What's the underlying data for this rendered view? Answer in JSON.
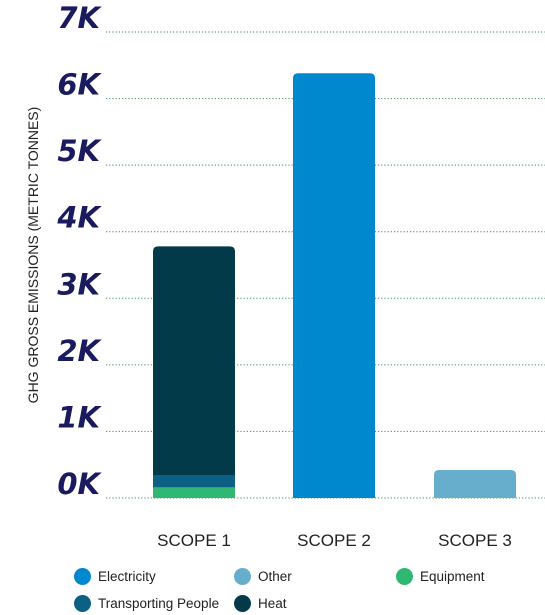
{
  "chart_data": {
    "type": "bar",
    "stacked": true,
    "title": "",
    "xlabel": "",
    "ylabel": "GHG GROSS EMISSIONS (METRIC TONNES)",
    "ylim": [
      0,
      7000
    ],
    "y_ticks": [
      0,
      1000,
      2000,
      3000,
      4000,
      5000,
      6000,
      7000
    ],
    "y_tick_labels": [
      "0K",
      "1K",
      "2K",
      "3K",
      "4K",
      "5K",
      "6K",
      "7K"
    ],
    "categories": [
      "SCOPE 1",
      "SCOPE 2",
      "SCOPE 3"
    ],
    "grid": true,
    "legend_position": "bottom",
    "series": [
      {
        "name": "Equipment",
        "color": "#2fb774",
        "values": [
          160,
          0,
          0
        ]
      },
      {
        "name": "Transporting People",
        "color": "#0e5f84",
        "values": [
          175,
          0,
          0
        ]
      },
      {
        "name": "Heat",
        "color": "#023a4a",
        "values": [
          3445,
          0,
          0
        ]
      },
      {
        "name": "Electricity",
        "color": "#0088cf",
        "values": [
          0,
          6380,
          0
        ]
      },
      {
        "name": "Other",
        "color": "#66aecb",
        "values": [
          0,
          0,
          420
        ]
      }
    ]
  },
  "legend": {
    "items": [
      {
        "label": "Electricity",
        "color": "#0088cf"
      },
      {
        "label": "Other",
        "color": "#66aecb"
      },
      {
        "label": "Equipment",
        "color": "#2fb774"
      },
      {
        "label": "Transporting People",
        "color": "#0e5f84"
      },
      {
        "label": "Heat",
        "color": "#023a4a"
      }
    ]
  }
}
